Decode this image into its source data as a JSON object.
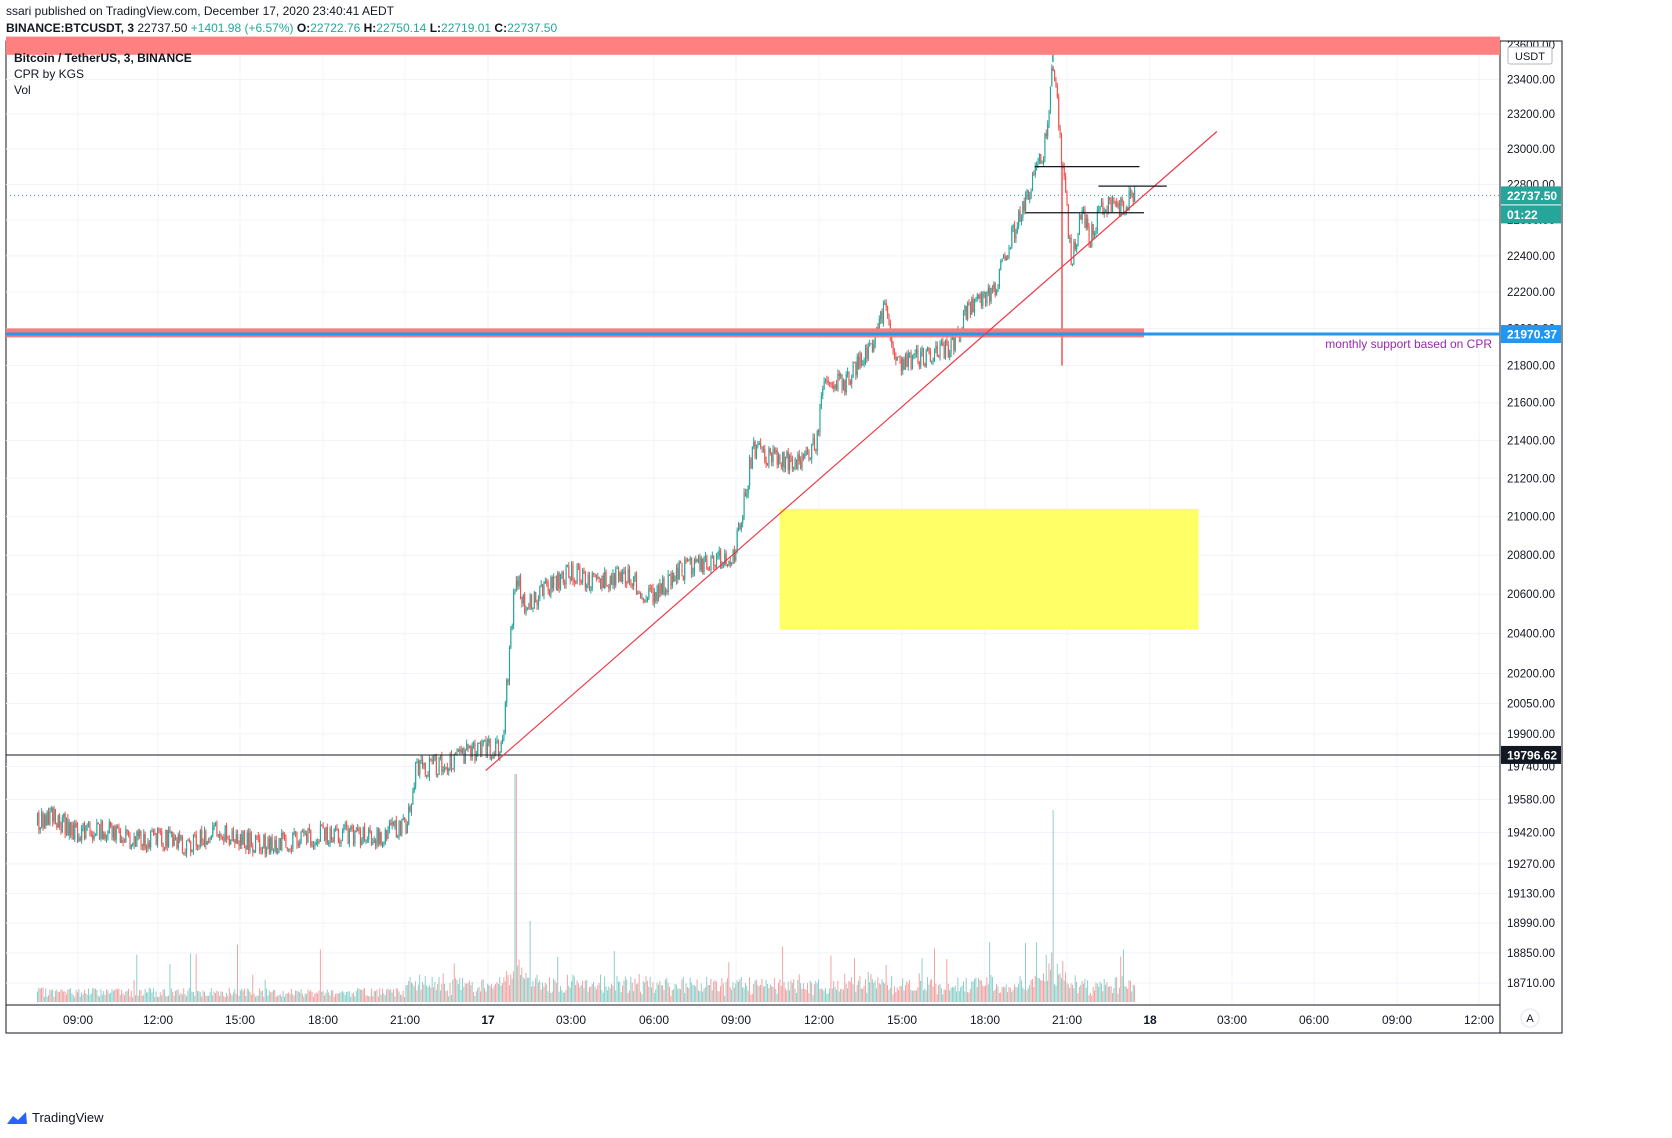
{
  "header": {
    "publish_line": "ssari published on TradingView.com, December 17, 2020 23:40:41 AEDT",
    "symbol_line": "BINANCE:BTCUSDT, 3",
    "last": "22737.50",
    "change": "+1401.98 (+6.57%)",
    "open_label": "O:",
    "open": "22722.76",
    "high_label": "H:",
    "high": "22750.14",
    "low_label": "L:",
    "low": "22719.01",
    "close_label": "C:",
    "close": "22737.50"
  },
  "legend": {
    "symbol": "Bitcoin / TetherUS, 3, BINANCE",
    "cpr": "CPR by KGS",
    "vol": "Vol"
  },
  "price_axis": {
    "currency": "USDT",
    "last_price_tag": "22737.50",
    "countdown_tag": "01:22",
    "cpr_tag": "21970.37",
    "crosshair_tag": "19796.62"
  },
  "annotations": {
    "support_text": "monthly support based on CPR"
  },
  "footer": {
    "brand": "TradingView"
  },
  "colors": {
    "up": "#26a69a",
    "down": "#ef5350",
    "trendline": "#f23645",
    "resistance_band": "#ff8080",
    "support_blue": "#2196f3",
    "support_red": "#f77c80",
    "zone": "#ffff66",
    "support_text": "#9c27b0"
  },
  "chart_data": {
    "type": "candlestick",
    "title": "Bitcoin / TetherUS, 3, BINANCE",
    "x_ticks": [
      "09:00",
      "12:00",
      "15:00",
      "18:00",
      "21:00",
      "17",
      "03:00",
      "06:00",
      "09:00",
      "12:00",
      "15:00",
      "18:00",
      "21:00",
      "18",
      "03:00",
      "06:00",
      "09:00",
      "12:00"
    ],
    "y_ticks": [
      23600,
      23400,
      23200,
      23000,
      22800,
      22600,
      22400,
      22200,
      22000,
      21800,
      21600,
      21400,
      21200,
      21000,
      20800,
      20600,
      20400,
      20200,
      20050,
      19900,
      19740,
      19580,
      19420,
      19270,
      19130,
      18990,
      18850,
      18710
    ],
    "y_tick_labels": [
      "23600.00",
      "23400.00",
      "23200.00",
      "23000.00",
      "22800.00",
      "22600.00",
      "22400.00",
      "22200.00",
      "22000.00",
      "21800.00",
      "21600.00",
      "21400.00",
      "21200.00",
      "21000.00",
      "20800.00",
      "20600.00",
      "20400.00",
      "20200.00",
      "20050.00",
      "19900.00",
      "19740.00",
      "19580.00",
      "19420.00",
      "19270.00",
      "19130.00",
      "18990.00",
      "18850.00",
      "18710.00"
    ],
    "yscale": "log",
    "price_path": [
      {
        "t": "Dec 16 07:30",
        "price": 19470
      },
      {
        "t": "Dec 16 08:00",
        "price": 19500
      },
      {
        "t": "Dec 16 09:00",
        "price": 19420
      },
      {
        "t": "Dec 16 10:00",
        "price": 19440
      },
      {
        "t": "Dec 16 11:00",
        "price": 19380
      },
      {
        "t": "Dec 16 12:00",
        "price": 19400
      },
      {
        "t": "Dec 16 13:00",
        "price": 19350
      },
      {
        "t": "Dec 16 14:00",
        "price": 19440
      },
      {
        "t": "Dec 16 15:00",
        "price": 19380
      },
      {
        "t": "Dec 16 16:00",
        "price": 19360
      },
      {
        "t": "Dec 16 17:00",
        "price": 19390
      },
      {
        "t": "Dec 16 18:00",
        "price": 19410
      },
      {
        "t": "Dec 16 19:00",
        "price": 19410
      },
      {
        "t": "Dec 16 20:00",
        "price": 19400
      },
      {
        "t": "Dec 16 21:00",
        "price": 19460
      },
      {
        "t": "Dec 16 21:20",
        "price": 19720
      },
      {
        "t": "Dec 16 22:30",
        "price": 19760
      },
      {
        "t": "Dec 16 23:30",
        "price": 19820
      },
      {
        "t": "Dec 17 00:30",
        "price": 19830
      },
      {
        "t": "Dec 17 01:00",
        "price": 20700
      },
      {
        "t": "Dec 17 01:20",
        "price": 20550
      },
      {
        "t": "Dec 17 03:00",
        "price": 20720
      },
      {
        "t": "Dec 17 04:00",
        "price": 20650
      },
      {
        "t": "Dec 17 05:00",
        "price": 20700
      },
      {
        "t": "Dec 17 06:00",
        "price": 20580
      },
      {
        "t": "Dec 17 07:00",
        "price": 20720
      },
      {
        "t": "Dec 17 08:00",
        "price": 20760
      },
      {
        "t": "Dec 17 09:00",
        "price": 20800
      },
      {
        "t": "Dec 17 09:40",
        "price": 21350
      },
      {
        "t": "Dec 17 10:30",
        "price": 21300
      },
      {
        "t": "Dec 17 11:30",
        "price": 21270
      },
      {
        "t": "Dec 17 12:00",
        "price": 21400
      },
      {
        "t": "Dec 17 12:20",
        "price": 21750
      },
      {
        "t": "Dec 17 13:00",
        "price": 21700
      },
      {
        "t": "Dec 17 14:00",
        "price": 21900
      },
      {
        "t": "Dec 17 14:30",
        "price": 22100
      },
      {
        "t": "Dec 17 15:00",
        "price": 21800
      },
      {
        "t": "Dec 17 16:00",
        "price": 21850
      },
      {
        "t": "Dec 17 17:00",
        "price": 21900
      },
      {
        "t": "Dec 17 17:30",
        "price": 22100
      },
      {
        "t": "Dec 17 18:30",
        "price": 22200
      },
      {
        "t": "Dec 17 19:00",
        "price": 22450
      },
      {
        "t": "Dec 17 19:30",
        "price": 22650
      },
      {
        "t": "Dec 17 20:00",
        "price": 22850
      },
      {
        "t": "Dec 17 20:20",
        "price": 23000
      },
      {
        "t": "Dec 17 20:40",
        "price": 23500
      },
      {
        "t": "Dec 17 21:00",
        "price": 22900
      },
      {
        "t": "Dec 17 21:20",
        "price": 22350
      },
      {
        "t": "Dec 17 21:40",
        "price": 22650
      },
      {
        "t": "Dec 17 22:00",
        "price": 22500
      },
      {
        "t": "Dec 17 22:30",
        "price": 22700
      },
      {
        "t": "Dec 17 23:00",
        "price": 22650
      },
      {
        "t": "Dec 17 23:40",
        "price": 22737.5
      }
    ],
    "extremes": [
      {
        "t": "Dec 17 20:40",
        "high": 23600
      },
      {
        "t": "Dec 17 21:00",
        "low": 21800
      }
    ],
    "volume_spikes": [
      {
        "t": "Dec 17 01:00",
        "volume_relative": 0.95
      },
      {
        "t": "Dec 17 20:40",
        "volume_relative": 0.8
      }
    ],
    "drawings": {
      "resistance_band": {
        "from": 23560,
        "to": 23620
      },
      "cpr_support_band": {
        "from": 21955,
        "to": 21985
      },
      "cpr_support_level": 21970.37,
      "crosshair_price": 19796.62,
      "last_price": 22737.5,
      "trendline": [
        {
          "t": "Dec 16 23:55",
          "price": 19720
        },
        {
          "t": "Dec 18 02:40",
          "price": 23100
        }
      ],
      "horizontal_segments": [
        {
          "t_start": "Dec 17 20:00",
          "t_end": "Dec 17 23:50",
          "price": 22900
        },
        {
          "t_start": "Dec 17 22:20",
          "t_end": "Dec 18 00:50",
          "price": 22790
        },
        {
          "t_start": "Dec 17 19:40",
          "t_end": "Dec 18 00:00",
          "price": 22640
        }
      ],
      "highlight_zone": {
        "t_start": "Dec 17 10:40",
        "t_end": "Dec 18 02:00",
        "price_from": 20420,
        "price_to": 21040
      }
    }
  }
}
